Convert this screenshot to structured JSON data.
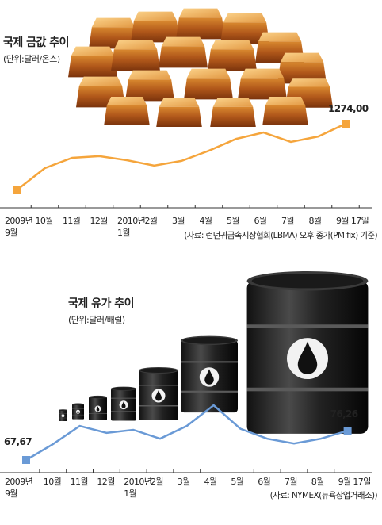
{
  "chart_data": [
    {
      "type": "line",
      "title": "국제 금값 추이",
      "subtitle": "(단위:달러/온스)",
      "source": "(자료: 런던귀금속시장협회(LBMA) 오후 종가(PM fix) 기준)",
      "categories": [
        "2009년\n9월",
        "10월",
        "11월",
        "12월",
        "2010년\n1월",
        "2월",
        "3월",
        "4월",
        "5월",
        "6월",
        "7월",
        "8월",
        "9월 17일"
      ],
      "values": [
        996,
        1086,
        1130,
        1137,
        1120,
        1097,
        1117,
        1160,
        1210,
        1237,
        1197,
        1220,
        1274
      ],
      "value_labels": [
        null,
        null,
        null,
        null,
        null,
        null,
        null,
        null,
        null,
        null,
        null,
        null,
        "1274,00"
      ],
      "color": "#f5a53c"
    },
    {
      "type": "line",
      "title": "국제 유가 추이",
      "subtitle": "(단위:달러/배럴)",
      "source": "(자료: NYMEX(뉴욕상업거래소))",
      "categories": [
        "2009년\n9월",
        "10월",
        "11월",
        "12월",
        "2010년\n1월",
        "2월",
        "3월",
        "4월",
        "5월",
        "6월",
        "7월",
        "8월",
        "9월 17일"
      ],
      "values": [
        67.67,
        72.3,
        77.65,
        75.6,
        76.5,
        73.9,
        77.65,
        83.7,
        76.8,
        73.9,
        72.5,
        73.9,
        76.26
      ],
      "value_labels": [
        "67,67",
        null,
        null,
        null,
        null,
        null,
        null,
        null,
        null,
        null,
        null,
        null,
        "76,26"
      ],
      "color": "#6a9ad6"
    }
  ]
}
